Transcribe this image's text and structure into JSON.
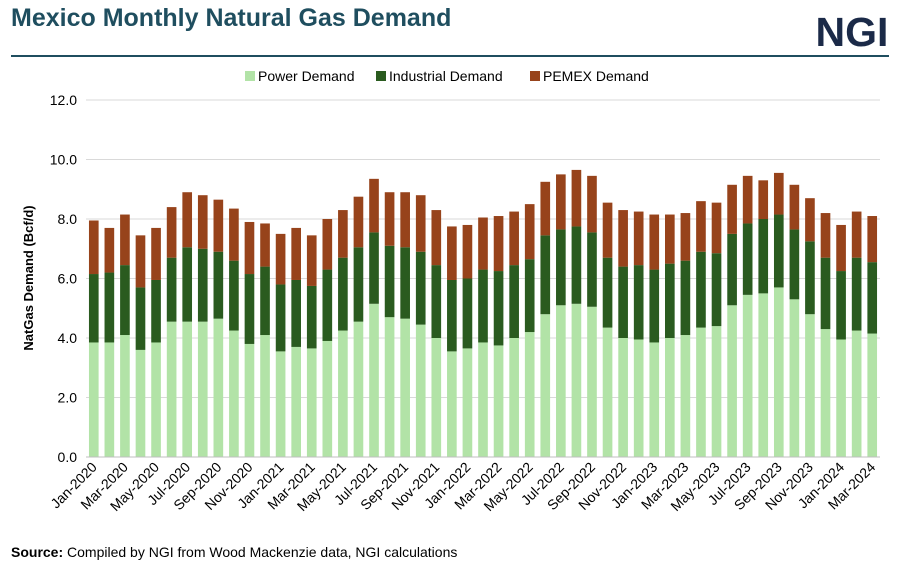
{
  "header": {
    "title": "Mexico Monthly Natural Gas Demand",
    "logo_text": "NGI"
  },
  "footer": {
    "source_label": "Source:",
    "source_text": "Compiled by NGI from Wood Mackenzie data, NGI calculations"
  },
  "colors": {
    "power": "#b2e3a7",
    "industrial": "#2a5b1f",
    "pemex": "#97431b",
    "title": "#1f4e5f",
    "logo": "#1b2a48",
    "grid": "#d9d9d9"
  },
  "chart_data": {
    "type": "bar",
    "stacked": true,
    "title": "",
    "xlabel": "",
    "ylabel": "NatGas Demand (Bcf/d)",
    "ylim": [
      0,
      12
    ],
    "yticks": [
      "0.0",
      "2.0",
      "4.0",
      "6.0",
      "8.0",
      "10.0",
      "12.0"
    ],
    "grid": true,
    "legend_position": "top",
    "categories": [
      "Jan-2020",
      "Feb-2020",
      "Mar-2020",
      "Apr-2020",
      "May-2020",
      "Jun-2020",
      "Jul-2020",
      "Aug-2020",
      "Sep-2020",
      "Oct-2020",
      "Nov-2020",
      "Dec-2020",
      "Jan-2021",
      "Feb-2021",
      "Mar-2021",
      "Apr-2021",
      "May-2021",
      "Jun-2021",
      "Jul-2021",
      "Aug-2021",
      "Sep-2021",
      "Oct-2021",
      "Nov-2021",
      "Dec-2021",
      "Jan-2022",
      "Feb-2022",
      "Mar-2022",
      "Apr-2022",
      "May-2022",
      "Jun-2022",
      "Jul-2022",
      "Aug-2022",
      "Sep-2022",
      "Oct-2022",
      "Nov-2022",
      "Dec-2022",
      "Jan-2023",
      "Feb-2023",
      "Mar-2023",
      "Apr-2023",
      "May-2023",
      "Jun-2023",
      "Jul-2023",
      "Aug-2023",
      "Sep-2023",
      "Oct-2023",
      "Nov-2023",
      "Dec-2023",
      "Jan-2024",
      "Feb-2024",
      "Mar-2024"
    ],
    "x_tick_labels": [
      "Jan-2020",
      "Mar-2020",
      "May-2020",
      "Jul-2020",
      "Sep-2020",
      "Nov-2020",
      "Jan-2021",
      "Mar-2021",
      "May-2021",
      "Jul-2021",
      "Sep-2021",
      "Nov-2021",
      "Jan-2022",
      "Mar-2022",
      "May-2022",
      "Jul-2022",
      "Sep-2022",
      "Nov-2022",
      "Jan-2023",
      "Mar-2023",
      "May-2023",
      "Jul-2023",
      "Sep-2023",
      "Nov-2023",
      "Jan-2024",
      "Mar-2024"
    ],
    "series": [
      {
        "name": "Power Demand",
        "values": [
          3.85,
          3.85,
          4.1,
          3.6,
          3.85,
          4.55,
          4.55,
          4.55,
          4.65,
          4.25,
          3.8,
          4.1,
          3.55,
          3.7,
          3.65,
          3.9,
          4.25,
          4.55,
          5.15,
          4.7,
          4.65,
          4.45,
          4.0,
          3.55,
          3.65,
          3.85,
          3.75,
          4.0,
          4.2,
          4.8,
          5.1,
          5.15,
          5.05,
          4.35,
          4.0,
          3.95,
          3.85,
          4.0,
          4.1,
          4.35,
          4.4,
          5.1,
          5.45,
          5.5,
          5.7,
          5.3,
          4.8,
          4.3,
          3.95,
          4.25,
          4.15
        ]
      },
      {
        "name": "Industrial Demand",
        "values": [
          2.3,
          2.35,
          2.35,
          2.1,
          2.1,
          2.15,
          2.5,
          2.45,
          2.25,
          2.35,
          2.35,
          2.3,
          2.25,
          2.25,
          2.1,
          2.4,
          2.45,
          2.5,
          2.4,
          2.4,
          2.4,
          2.45,
          2.45,
          2.4,
          2.35,
          2.45,
          2.5,
          2.45,
          2.45,
          2.65,
          2.55,
          2.6,
          2.5,
          2.35,
          2.4,
          2.5,
          2.45,
          2.5,
          2.5,
          2.55,
          2.45,
          2.4,
          2.4,
          2.5,
          2.45,
          2.35,
          2.45,
          2.4,
          2.3,
          2.45,
          2.4
        ]
      },
      {
        "name": "PEMEX Demand",
        "values": [
          1.8,
          1.5,
          1.7,
          1.75,
          1.75,
          1.7,
          1.85,
          1.8,
          1.75,
          1.75,
          1.75,
          1.45,
          1.7,
          1.75,
          1.7,
          1.7,
          1.6,
          1.7,
          1.8,
          1.8,
          1.85,
          1.9,
          1.85,
          1.8,
          1.8,
          1.75,
          1.85,
          1.8,
          1.85,
          1.8,
          1.85,
          1.9,
          1.9,
          1.85,
          1.9,
          1.8,
          1.85,
          1.65,
          1.6,
          1.7,
          1.7,
          1.65,
          1.6,
          1.3,
          1.4,
          1.5,
          1.45,
          1.5,
          1.55,
          1.55,
          1.55
        ]
      }
    ]
  }
}
